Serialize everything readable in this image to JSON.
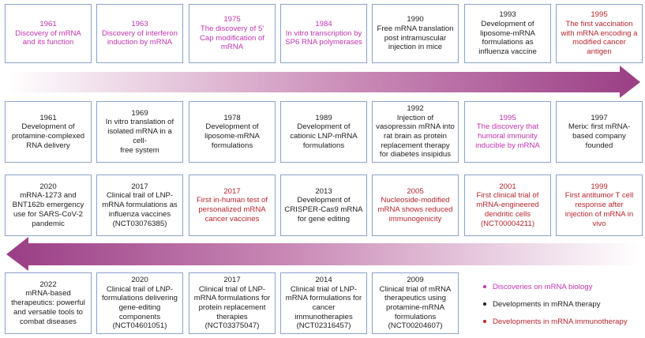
{
  "rows": [
    [
      {
        "text": "1961\nDiscovery of mRNA\nand its function",
        "cat": "discovery"
      },
      {
        "text": "1963\nDiscovery of interferon\ninduction by  mRNA",
        "cat": "discovery"
      },
      {
        "text": "1975\nThe discovery of 5'\nCap modification of\nmRNA",
        "cat": "discovery"
      },
      {
        "text": "1984\nIn vitro transcription by\nSP6 RNA polymerases",
        "cat": "discovery"
      },
      {
        "text": "1990\nFree mRNA translation\npost intramuscular\ninjection in mice",
        "cat": "therapy"
      },
      {
        "text": "1993\nDevelopment of\nliposome-mRNA\nformulations as\ninfluenza vaccine",
        "cat": "therapy"
      },
      {
        "text": "1995\nThe first vaccination\nwith mRNA encoding a\nmodified cancer\nantigen",
        "cat": "immuno"
      }
    ],
    [
      {
        "text": "1961\nDevelopment of\nprotamine-complexed\nRNA delivery",
        "cat": "therapy"
      },
      {
        "text": "1969\nIn vitro translation of\nisolated mRNA in a cell-\nfree system",
        "cat": "therapy"
      },
      {
        "text": "1978\nDevelopment of\nliposome-mRNA\nformulations",
        "cat": "therapy"
      },
      {
        "text": "1989\nDevelopment of\ncationic LNP-mRNA\nformulations",
        "cat": "therapy"
      },
      {
        "text": "1992\nInjection of\nvasopressin mRNA into\nrat brain as protein\nreplacement therapy\nfor diabetes insipidus",
        "cat": "therapy"
      },
      {
        "text": "1995\nThe discovery that\nhumoral immunity\ninducible by mRNA",
        "cat": "discovery"
      },
      {
        "text": "1997\nMerix: first mRNA-\nbased company\nfounded",
        "cat": "therapy"
      }
    ],
    [
      {
        "text": "2020\nmRNA-1273 and\nBNT162b emergency\nuse for SARS-CoV-2\npandemic",
        "cat": "therapy"
      },
      {
        "text": "2017\nClinical trail of LNP-\nmRNA formulations as\ninfluenza vaccines\n(NCT03076385)",
        "cat": "therapy"
      },
      {
        "text": "2017\nFirst in-human test of\npersonalized mRNA\ncancer vaccines",
        "cat": "immuno"
      },
      {
        "text": "2013\nDevelopment of\nCRISPER-Cas9 mRNA\nfor gene editing",
        "cat": "therapy"
      },
      {
        "text": "2005\nNucleoside-modified\nmRNA shows reduced\nimmunogenicity",
        "cat": "immuno"
      },
      {
        "text": "2001\nFirst clinical trial of\nmRNA-engineered\ndendritic cells\n(NCT00004211)",
        "cat": "immuno"
      },
      {
        "text": "1999\nFirst antitumor T cell\nresponse after\ninjection of mRNA in\nvivo",
        "cat": "immuno"
      }
    ],
    [
      {
        "text": "2022\nmRNA-based\ntherapeutics: powerful\nand versatile tools to\ncombat diseases",
        "cat": "therapy"
      },
      {
        "text": "2020\nClinical trail of LNP-\nformulations delivering\ngene-editing\ncomponents\n(NCT04601051)",
        "cat": "therapy"
      },
      {
        "text": "2017\nClinical trial of LNP-\nmRNA formulations for\nprotein replacement\ntherapies\n(NCT03375047)",
        "cat": "therapy"
      },
      {
        "text": "2014\nClinical trial of LNP-\nmRNA formulations for\ncancer\nimmunotherapies\n(NCT02316457)",
        "cat": "therapy"
      },
      {
        "text": "2009\nClinical trial of mRNA\ntherapeutics using\nprotamine-mRNA\nformulations\n(NCT00204607)",
        "cat": "therapy"
      }
    ]
  ],
  "legend": [
    {
      "label": "Discoveries on mRNA biology",
      "cat": "discovery"
    },
    {
      "label": "Developments in mRNA therapy",
      "cat": "therapy"
    },
    {
      "label": "Developments in mRNA immunotherapy",
      "cat": "immuno"
    }
  ],
  "colors": {
    "discovery": "#c234b0",
    "therapy": "#1e1e1e",
    "immuno": "#b5262f",
    "border": "#8aa3cc",
    "arrow": "#a8488f"
  }
}
